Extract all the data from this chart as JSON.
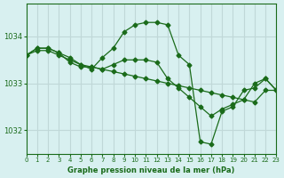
{
  "bg_color": "#d8f0f0",
  "grid_color": "#c0d8d8",
  "line_color": "#1a6b1a",
  "title": "Graphe pression niveau de la mer (hPa)",
  "xlim": [
    0,
    23
  ],
  "ylim": [
    1031.5,
    1034.7
  ],
  "yticks": [
    1032,
    1033,
    1034
  ],
  "xticks": [
    0,
    1,
    2,
    3,
    4,
    5,
    6,
    7,
    8,
    9,
    10,
    11,
    12,
    13,
    14,
    15,
    16,
    17,
    18,
    19,
    20,
    21,
    22,
    23
  ],
  "series1_x": [
    0,
    1,
    2,
    3,
    4,
    5,
    6,
    7,
    8,
    9,
    10,
    11,
    12,
    13,
    14,
    15,
    16,
    17,
    18,
    19,
    20,
    21,
    22,
    23
  ],
  "series1_y": [
    1033.6,
    1033.7,
    1033.7,
    1033.6,
    1033.5,
    1033.4,
    1033.35,
    1033.3,
    1033.25,
    1033.2,
    1033.15,
    1033.1,
    1033.05,
    1033.0,
    1032.95,
    1032.9,
    1032.85,
    1032.8,
    1032.75,
    1032.7,
    1032.65,
    1032.6,
    1032.85,
    1032.85
  ],
  "series2_x": [
    0,
    1,
    2,
    3,
    4,
    5,
    6,
    7,
    8,
    9,
    10,
    11,
    12,
    13,
    14,
    15,
    16,
    17,
    18,
    19,
    20,
    21,
    22,
    23
  ],
  "series2_y": [
    1033.6,
    1033.75,
    1033.75,
    1033.65,
    1033.55,
    1033.4,
    1033.3,
    1033.55,
    1033.75,
    1034.1,
    1034.25,
    1034.3,
    1034.3,
    1034.25,
    1033.6,
    1033.4,
    1031.75,
    1031.7,
    1032.4,
    1032.5,
    1032.85,
    1032.9,
    1033.1,
    1032.85
  ],
  "series3_x": [
    0,
    1,
    2,
    3,
    4,
    5,
    6,
    7,
    8,
    9,
    10,
    11,
    12,
    13,
    14,
    15,
    16,
    17,
    18,
    19,
    20,
    21,
    22,
    23
  ],
  "series3_y": [
    1033.6,
    1033.75,
    1033.75,
    1033.65,
    1033.45,
    1033.35,
    1033.35,
    1033.3,
    1033.4,
    1033.5,
    1033.5,
    1033.5,
    1033.45,
    1033.1,
    1032.9,
    1032.7,
    1032.5,
    1032.3,
    1032.45,
    1032.55,
    1032.65,
    1033.0,
    1033.1,
    1032.85
  ]
}
